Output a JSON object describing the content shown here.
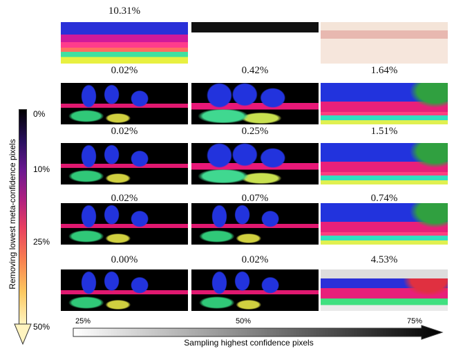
{
  "top": {
    "label": "10.31%"
  },
  "grid": {
    "rows": [
      [
        "0.02%",
        "0.42%",
        "1.64%"
      ],
      [
        "0.02%",
        "0.25%",
        "1.51%"
      ],
      [
        "0.02%",
        "0.07%",
        "0.74%"
      ],
      [
        "0.00%",
        "0.02%",
        "4.53%"
      ]
    ]
  },
  "vertical_axis": {
    "title": "Removing lowest meta-confidence pixels",
    "ticks": [
      "0%",
      "10%",
      "25%",
      "50%"
    ]
  },
  "horizontal_axis": {
    "title": "Sampling highest confidence pixels",
    "ticks": [
      "25%",
      "50%",
      "75%"
    ]
  }
}
